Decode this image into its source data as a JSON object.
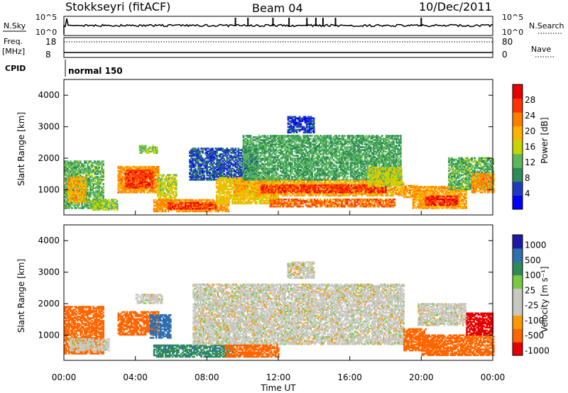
{
  "header": {
    "station": "Stokkseyri (fitACF)",
    "beam": "Beam 04",
    "date": "10/Dec/2011"
  },
  "housekeeping": {
    "nsky_label": "N.Sky",
    "nsearch_label": "N.Search",
    "nsky_ticks": [
      "10^5",
      "10^0"
    ],
    "nsearch_ticks": [
      "10^5",
      "10^0"
    ],
    "freq_label_line1": "Freq.",
    "freq_label_line2": "[MHz]",
    "freq_ticks": [
      "18",
      "8"
    ],
    "nave_label": "Nave",
    "nave_ticks": [
      "80",
      "0"
    ],
    "cpid_label": "CPID",
    "cpid_value": "normal 150"
  },
  "colors": {
    "power_scale": [
      "#0000ff",
      "#1f3cc0",
      "#2e8b57",
      "#5cb85c",
      "#c8d400",
      "#ffb300",
      "#ff7f00",
      "#ff3300",
      "#e60000"
    ],
    "velocity_scale": [
      "#1a1aa6",
      "#2e6fb0",
      "#2e8b57",
      "#7ac943",
      "#c8c8c0",
      "#c8c8c0",
      "#ff9900",
      "#ff6600",
      "#e60000"
    ]
  },
  "chart_data": [
    {
      "type": "heatmap",
      "panel": "power",
      "x_axis_range_hours": [
        0,
        24
      ],
      "y_axis_range_km": [
        200,
        4500
      ],
      "ylabel": "Slant Range [km]",
      "yticks": [
        "1000",
        "2000",
        "3000",
        "4000"
      ],
      "colorbar_label": "Power [dB]",
      "colorbar_ticks": [
        "28",
        "24",
        "20",
        "16",
        "12",
        "8",
        "4"
      ],
      "colorbar_range": [
        0,
        32
      ],
      "regions": [
        {
          "t0": 0.0,
          "t1": 2.2,
          "r0": 400,
          "r1": 1900,
          "v": 12
        },
        {
          "t0": 0.2,
          "t1": 1.2,
          "r0": 600,
          "r1": 1400,
          "v": 20
        },
        {
          "t0": 1.5,
          "t1": 3.0,
          "r0": 350,
          "r1": 700,
          "v": 14
        },
        {
          "t0": 3.0,
          "t1": 5.3,
          "r0": 900,
          "r1": 1750,
          "v": 22
        },
        {
          "t0": 3.4,
          "t1": 5.0,
          "r0": 1050,
          "r1": 1600,
          "v": 27
        },
        {
          "t0": 4.2,
          "t1": 5.2,
          "r0": 2150,
          "r1": 2400,
          "v": 14
        },
        {
          "t0": 5.2,
          "t1": 6.3,
          "r0": 600,
          "r1": 1500,
          "v": 16
        },
        {
          "t0": 5.0,
          "t1": 9.2,
          "r0": 300,
          "r1": 700,
          "v": 22
        },
        {
          "t0": 5.8,
          "t1": 8.5,
          "r0": 380,
          "r1": 600,
          "v": 27
        },
        {
          "t0": 7.0,
          "t1": 10.8,
          "r0": 1300,
          "r1": 2300,
          "v": 6
        },
        {
          "t0": 8.5,
          "t1": 12.0,
          "r0": 550,
          "r1": 1400,
          "v": 18
        },
        {
          "t0": 9.5,
          "t1": 19.0,
          "r0": 800,
          "r1": 1300,
          "v": 20
        },
        {
          "t0": 11.0,
          "t1": 18.0,
          "r0": 900,
          "r1": 1150,
          "v": 27
        },
        {
          "t0": 10.0,
          "t1": 18.8,
          "r0": 1300,
          "r1": 2700,
          "v": 11
        },
        {
          "t0": 11.5,
          "t1": 18.5,
          "r0": 450,
          "r1": 700,
          "v": 24
        },
        {
          "t0": 12.5,
          "t1": 14.0,
          "r0": 2800,
          "r1": 3300,
          "v": 5
        },
        {
          "t0": 17.0,
          "t1": 18.9,
          "r0": 1100,
          "r1": 1700,
          "v": 16
        },
        {
          "t0": 19.0,
          "t1": 19.8,
          "r0": 750,
          "r1": 1150,
          "v": 22
        },
        {
          "t0": 19.5,
          "t1": 22.5,
          "r0": 400,
          "r1": 1100,
          "v": 21
        },
        {
          "t0": 20.2,
          "t1": 22.0,
          "r0": 500,
          "r1": 800,
          "v": 28
        },
        {
          "t0": 21.5,
          "t1": 24.0,
          "r0": 1000,
          "r1": 2000,
          "v": 12
        },
        {
          "t0": 22.8,
          "t1": 24.0,
          "r0": 900,
          "r1": 1500,
          "v": 22
        }
      ]
    },
    {
      "type": "heatmap",
      "panel": "velocity",
      "x_axis_range_hours": [
        0,
        24
      ],
      "y_axis_range_km": [
        200,
        4500
      ],
      "ylabel": "Slant Range [km]",
      "yticks": [
        "1000",
        "2000",
        "3000",
        "4000"
      ],
      "colorbar_label": "Velocity [m s⁻¹]",
      "colorbar_ticks": [
        "1000",
        "500",
        "100",
        "25",
        "-25",
        "-100",
        "-500",
        "-1000"
      ],
      "regions": [
        {
          "t0": 0.0,
          "t1": 2.2,
          "r0": 400,
          "r1": 1900,
          "v": -150
        },
        {
          "t0": 0.3,
          "t1": 2.5,
          "r0": 500,
          "r1": 900,
          "v": 0
        },
        {
          "t0": 3.0,
          "t1": 5.3,
          "r0": 1000,
          "r1": 1750,
          "v": -300
        },
        {
          "t0": 4.0,
          "t1": 5.5,
          "r0": 2000,
          "r1": 2300,
          "v": 0
        },
        {
          "t0": 4.8,
          "t1": 6.0,
          "r0": 900,
          "r1": 1650,
          "v": 300
        },
        {
          "t0": 5.0,
          "t1": 9.5,
          "r0": 300,
          "r1": 700,
          "v": 80
        },
        {
          "t0": 7.2,
          "t1": 19.0,
          "r0": 700,
          "r1": 2600,
          "v": 0
        },
        {
          "t0": 9.0,
          "t1": 12.0,
          "r0": 300,
          "r1": 700,
          "v": -200
        },
        {
          "t0": 12.5,
          "t1": 14.0,
          "r0": 2800,
          "r1": 3300,
          "v": 0
        },
        {
          "t0": 19.0,
          "t1": 20.2,
          "r0": 500,
          "r1": 1200,
          "v": -400
        },
        {
          "t0": 19.8,
          "t1": 22.5,
          "r0": 1300,
          "r1": 2000,
          "v": 0
        },
        {
          "t0": 20.0,
          "t1": 24.0,
          "r0": 350,
          "r1": 1000,
          "v": -300
        },
        {
          "t0": 22.5,
          "t1": 24.0,
          "r0": 1000,
          "r1": 1700,
          "v": -800
        }
      ]
    }
  ],
  "xaxis": {
    "ticks": [
      "00:00",
      "04:00",
      "08:00",
      "12:00",
      "16:00",
      "20:00",
      "00:00"
    ],
    "label": "Time UT"
  }
}
